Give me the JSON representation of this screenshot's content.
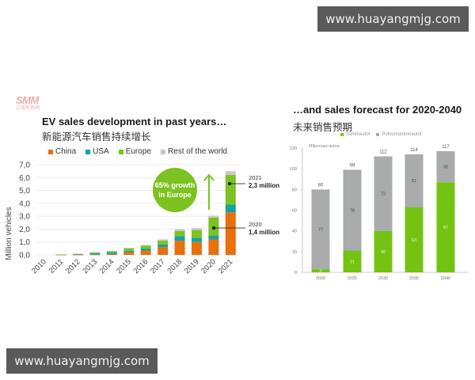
{
  "watermarks": {
    "top": "www.huayangmjg.com",
    "bottom": "www.huayangmjg.com"
  },
  "logo": {
    "text": "SMM",
    "subtext": "上海有色网"
  },
  "colors": {
    "china": "#e8700f",
    "usa": "#16a2a0",
    "europe": "#7cc221",
    "rest": "#c8c8c8",
    "ev_green": "#74c313",
    "ice_grey": "#a9abad"
  },
  "left_chart": {
    "title": "EV sales development in past years…",
    "subtitle": "新能源汽车销售持续增长",
    "legend": [
      "China",
      "USA",
      "Europe",
      "Rest of the world"
    ],
    "ylabel": "Million vehicles",
    "yticks": [
      "0,0",
      "1,0",
      "2,0",
      "3,0",
      "4,0",
      "5,0",
      "6,0",
      "7,0"
    ],
    "bubble": {
      "line1": "65% growth",
      "line2": "in Europe"
    },
    "annotation_2021": {
      "year": "2021",
      "value": "2,3 million"
    },
    "annotation_2020": {
      "year": "2020",
      "value": "1,4 million"
    }
  },
  "right_chart": {
    "title": "…and sales forecast for 2020-2040",
    "subtitle": "未来销售预期",
    "legend": [
      "Sähköautot",
      "Polttomoottoriautot"
    ],
    "ylabel": "Miljoonaa autoa",
    "yticks": [
      "0",
      "20",
      "40",
      "60",
      "80",
      "100",
      "120"
    ]
  },
  "chart_data": [
    {
      "type": "bar",
      "stacked": true,
      "title": "EV sales development in past years…",
      "subtitle": "新能源汽车销售持续增长",
      "xlabel": "",
      "ylabel": "Million vehicles",
      "ylim": [
        0,
        7
      ],
      "grid": true,
      "legend_position": "top",
      "categories": [
        "2010",
        "2011",
        "2012",
        "2013",
        "2014",
        "2015",
        "2016",
        "2017",
        "2018",
        "2019",
        "2020",
        "2021"
      ],
      "series": [
        {
          "name": "China",
          "values": [
            0.0,
            0.01,
            0.01,
            0.02,
            0.07,
            0.21,
            0.34,
            0.6,
            1.1,
            1.0,
            1.2,
            3.3
          ]
        },
        {
          "name": "USA",
          "values": [
            0.0,
            0.02,
            0.05,
            0.1,
            0.12,
            0.11,
            0.16,
            0.2,
            0.36,
            0.33,
            0.3,
            0.6
          ]
        },
        {
          "name": "Europe",
          "values": [
            0.0,
            0.01,
            0.03,
            0.07,
            0.1,
            0.19,
            0.22,
            0.3,
            0.4,
            0.6,
            1.4,
            2.3
          ]
        },
        {
          "name": "Rest of the world",
          "values": [
            0.0,
            0.01,
            0.01,
            0.02,
            0.02,
            0.04,
            0.06,
            0.1,
            0.14,
            0.15,
            0.15,
            0.3
          ]
        }
      ],
      "annotations": [
        "65% growth in Europe",
        "2021 2,3 million",
        "2020 1,4 million"
      ]
    },
    {
      "type": "bar",
      "stacked": true,
      "title": "…and sales forecast for 2020-2040",
      "subtitle": "未来销售预期",
      "xlabel": "",
      "ylabel": "Miljoonaa autoa",
      "ylim": [
        0,
        120
      ],
      "grid": false,
      "legend_position": "top",
      "categories": [
        "2020",
        "2025",
        "2030",
        "2035",
        "2040"
      ],
      "series": [
        {
          "name": "Sähköautot",
          "values": [
            3,
            21,
            40,
            63,
            87
          ]
        },
        {
          "name": "Polttomoottoriautot",
          "values": [
            77,
            78,
            72,
            51,
            30
          ]
        }
      ],
      "totals": [
        80,
        99,
        112,
        114,
        117
      ]
    }
  ]
}
